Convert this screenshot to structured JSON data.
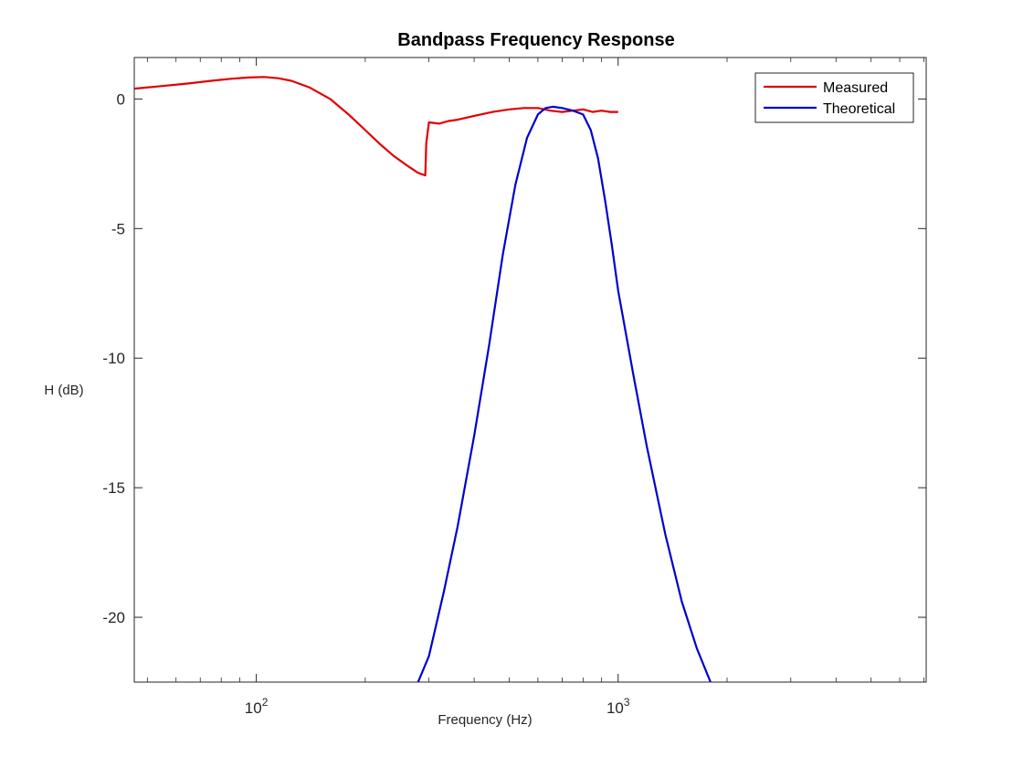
{
  "chart_data": {
    "type": "line",
    "title": "Bandpass Frequency Response",
    "xlabel": "Frequency (Hz)",
    "ylabel": "H (dB)",
    "xscale": "log",
    "xlim": [
      46,
      7100
    ],
    "ylim": [
      -22.5,
      1.6
    ],
    "yticks": [
      0,
      -5,
      -10,
      -15,
      -20
    ],
    "ytick_labels": [
      "0",
      "-5",
      "-10",
      "-15",
      "-20"
    ],
    "xticks_major": [
      100,
      1000
    ],
    "xtick_labels": [
      {
        "base": "10",
        "exp": "2"
      },
      {
        "base": "10",
        "exp": "3"
      }
    ],
    "grid": false,
    "legend": "top-right",
    "series": [
      {
        "name": "Measured",
        "color": "#e00000",
        "x": [
          46,
          55,
          65,
          75,
          85,
          95,
          105,
          115,
          125,
          140,
          160,
          180,
          200,
          220,
          240,
          260,
          280,
          293,
          295,
          300,
          320,
          340,
          360,
          400,
          450,
          500,
          550,
          600,
          650,
          700,
          750,
          800,
          850,
          900,
          950,
          1000
        ],
        "y": [
          0.4,
          0.5,
          0.6,
          0.7,
          0.78,
          0.83,
          0.85,
          0.8,
          0.7,
          0.45,
          0.0,
          -0.6,
          -1.2,
          -1.75,
          -2.2,
          -2.55,
          -2.85,
          -2.95,
          -1.7,
          -0.9,
          -0.95,
          -0.85,
          -0.8,
          -0.65,
          -0.5,
          -0.4,
          -0.35,
          -0.35,
          -0.45,
          -0.5,
          -0.45,
          -0.4,
          -0.5,
          -0.45,
          -0.5,
          -0.5
        ]
      },
      {
        "name": "Theoretical",
        "color": "#0000d0",
        "x": [
          280,
          300,
          330,
          360,
          400,
          440,
          480,
          520,
          560,
          600,
          630,
          660,
          700,
          750,
          800,
          840,
          880,
          920,
          960,
          1000,
          1100,
          1200,
          1350,
          1500,
          1650,
          1800
        ],
        "y": [
          -22.5,
          -21.5,
          -19.0,
          -16.5,
          -13.0,
          -9.5,
          -6.0,
          -3.3,
          -1.5,
          -0.6,
          -0.35,
          -0.3,
          -0.35,
          -0.45,
          -0.6,
          -1.2,
          -2.3,
          -3.9,
          -5.6,
          -7.4,
          -10.6,
          -13.4,
          -16.8,
          -19.4,
          -21.2,
          -22.5
        ]
      }
    ]
  }
}
